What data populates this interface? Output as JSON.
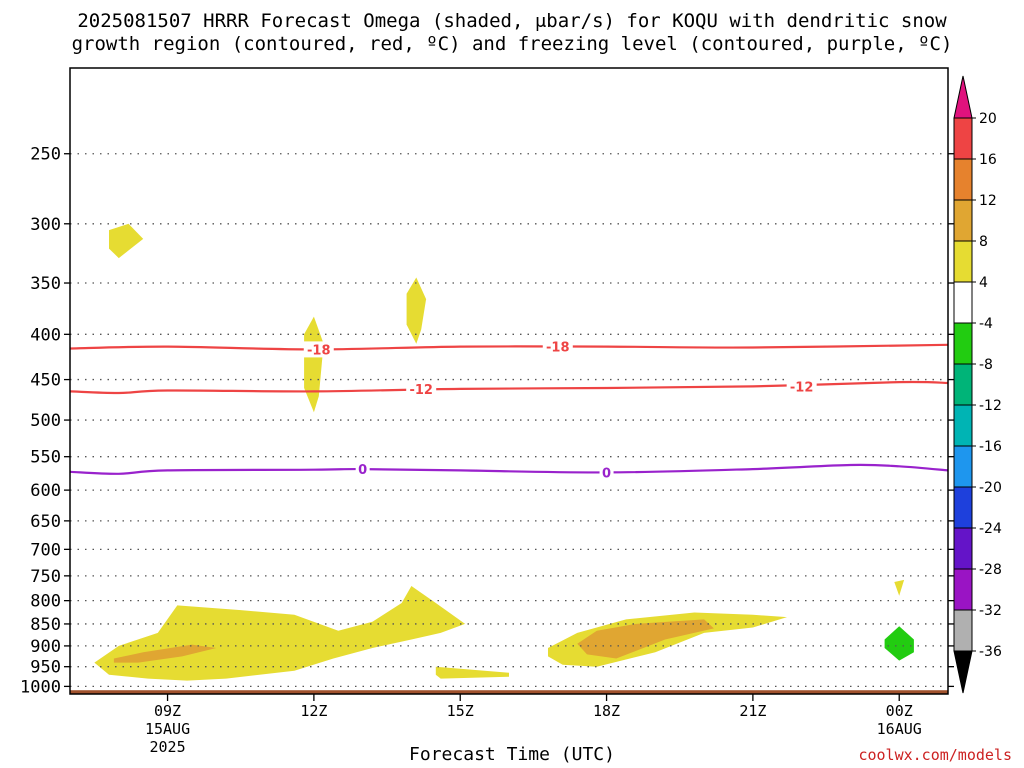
{
  "title_line1": "2025081507 HRRR Forecast Omega (shaded, μbar/s) for KOQU with dendritic snow",
  "title_line2": "growth region (contoured, red, ºC) and freezing level (contoured, purple, ºC)",
  "credit": "coolwx.com/models",
  "chart_data": {
    "type": "contour",
    "xlabel": "Forecast Time (UTC)",
    "ylabel": "",
    "x_range": [
      7,
      25
    ],
    "pressure_range": [
      1020,
      200
    ],
    "y_ticks": [
      250,
      300,
      350,
      400,
      450,
      500,
      550,
      600,
      650,
      700,
      750,
      800,
      850,
      900,
      950,
      1000
    ],
    "x_ticks": [
      {
        "hour": 9,
        "label": "09Z",
        "sub": "15AUG",
        "sub2": "2025"
      },
      {
        "hour": 12,
        "label": "12Z",
        "sub": "",
        "sub2": ""
      },
      {
        "hour": 15,
        "label": "15Z",
        "sub": "",
        "sub2": ""
      },
      {
        "hour": 18,
        "label": "18Z",
        "sub": "",
        "sub2": ""
      },
      {
        "hour": 21,
        "label": "21Z",
        "sub": "",
        "sub2": ""
      },
      {
        "hour": 24,
        "label": "00Z",
        "sub": "16AUG",
        "sub2": ""
      }
    ],
    "grid": true,
    "surface_color": "#a0522d",
    "surface_pressure": 1010,
    "contours": [
      {
        "value": "-18",
        "color": "#ee4444",
        "kind": "dendritic",
        "points": [
          [
            7,
            415
          ],
          [
            9,
            413
          ],
          [
            12,
            416
          ],
          [
            15,
            413
          ],
          [
            18,
            413
          ],
          [
            21,
            414
          ],
          [
            25,
            411
          ]
        ],
        "labels": [
          [
            12.1,
            416
          ],
          [
            17.0,
            413
          ]
        ]
      },
      {
        "value": "-12",
        "color": "#ee4444",
        "kind": "dendritic",
        "points": [
          [
            7,
            464
          ],
          [
            8,
            466
          ],
          [
            9,
            463
          ],
          [
            12,
            464
          ],
          [
            15,
            461
          ],
          [
            18,
            460
          ],
          [
            21,
            458
          ],
          [
            24,
            453
          ],
          [
            25,
            454
          ]
        ],
        "labels": [
          [
            14.2,
            461
          ],
          [
            22.0,
            458
          ]
        ]
      },
      {
        "value": "0",
        "color": "#9922cc",
        "kind": "freezing",
        "points": [
          [
            7,
            572
          ],
          [
            8,
            575
          ],
          [
            9,
            570
          ],
          [
            12,
            569
          ],
          [
            13,
            568
          ],
          [
            15,
            570
          ],
          [
            18,
            573
          ],
          [
            21,
            568
          ],
          [
            23,
            562
          ],
          [
            24,
            564
          ],
          [
            25,
            570
          ]
        ],
        "labels": [
          [
            13.0,
            568
          ],
          [
            18.0,
            573
          ]
        ]
      }
    ],
    "shaded_regions": [
      {
        "omega_bin": "4 to 8",
        "color": "#e6dc32",
        "points": [
          [
            7.5,
            940
          ],
          [
            8.0,
            900
          ],
          [
            8.8,
            870
          ],
          [
            9.2,
            810
          ],
          [
            10.5,
            820
          ],
          [
            11.6,
            830
          ],
          [
            12.5,
            865
          ],
          [
            13.2,
            845
          ],
          [
            13.8,
            805
          ],
          [
            14.0,
            770
          ],
          [
            14.5,
            805
          ],
          [
            15.1,
            850
          ],
          [
            14.6,
            870
          ],
          [
            14.0,
            885
          ],
          [
            13.2,
            905
          ],
          [
            12.4,
            930
          ],
          [
            11.6,
            960
          ],
          [
            10.2,
            980
          ],
          [
            9.4,
            985
          ],
          [
            8.6,
            980
          ],
          [
            7.8,
            970
          ]
        ]
      },
      {
        "omega_bin": "4 to 8",
        "color": "#e6dc32",
        "points": [
          [
            14.5,
            950
          ],
          [
            15.5,
            960
          ],
          [
            16.0,
            965
          ],
          [
            16.0,
            975
          ],
          [
            14.6,
            980
          ],
          [
            14.5,
            970
          ]
        ]
      },
      {
        "omega_bin": "4 to 8",
        "color": "#e6dc32",
        "points": [
          [
            16.8,
            905
          ],
          [
            17.4,
            870
          ],
          [
            18.4,
            840
          ],
          [
            19.8,
            825
          ],
          [
            21.0,
            830
          ],
          [
            21.7,
            835
          ],
          [
            21.0,
            858
          ],
          [
            20.0,
            870
          ],
          [
            19.0,
            915
          ],
          [
            17.8,
            950
          ],
          [
            17.1,
            945
          ],
          [
            16.8,
            925
          ]
        ]
      },
      {
        "omega_bin": "8 to 12",
        "color": "#e0a632",
        "points": [
          [
            7.9,
            930
          ],
          [
            8.5,
            915
          ],
          [
            9.5,
            897
          ],
          [
            10.0,
            905
          ],
          [
            9.3,
            925
          ],
          [
            8.4,
            940
          ],
          [
            7.9,
            940
          ]
        ]
      },
      {
        "omega_bin": "8 to 12",
        "color": "#e0a632",
        "points": [
          [
            17.4,
            895
          ],
          [
            17.8,
            865
          ],
          [
            18.6,
            850
          ],
          [
            20.0,
            840
          ],
          [
            20.2,
            860
          ],
          [
            19.2,
            885
          ],
          [
            18.2,
            930
          ],
          [
            17.6,
            920
          ]
        ]
      },
      {
        "omega_bin": "4 to 8",
        "color": "#e6dc32",
        "points": [
          [
            7.8,
            305
          ],
          [
            8.2,
            300
          ],
          [
            8.5,
            312
          ],
          [
            8.0,
            328
          ],
          [
            7.8,
            320
          ]
        ]
      },
      {
        "omega_bin": "4 to 8",
        "color": "#e6dc32",
        "points": [
          [
            11.8,
            400
          ],
          [
            12.0,
            382
          ],
          [
            12.2,
            410
          ],
          [
            12.1,
            470
          ],
          [
            12.0,
            490
          ],
          [
            11.8,
            460
          ]
        ]
      },
      {
        "omega_bin": "4 to 8",
        "color": "#e6dc32",
        "points": [
          [
            13.9,
            360
          ],
          [
            14.1,
            345
          ],
          [
            14.3,
            365
          ],
          [
            14.2,
            395
          ],
          [
            14.1,
            410
          ],
          [
            13.9,
            390
          ]
        ]
      },
      {
        "omega_bin": "4 to 8",
        "color": "#e6dc32",
        "points": [
          [
            23.9,
            762
          ],
          [
            24.1,
            758
          ],
          [
            24.0,
            790
          ]
        ]
      },
      {
        "omega_bin": "-4 to -8",
        "color": "#22cc11",
        "points": [
          [
            23.7,
            885
          ],
          [
            24.0,
            855
          ],
          [
            24.3,
            885
          ],
          [
            24.3,
            915
          ],
          [
            24.0,
            935
          ],
          [
            23.7,
            905
          ]
        ]
      }
    ],
    "colorbar": {
      "levels": [
        "20",
        "16",
        "12",
        "8",
        "4",
        "-4",
        "-8",
        "-12",
        "-16",
        "-20",
        "-24",
        "-28",
        "-32",
        "-36"
      ],
      "colors": [
        "#ee4444",
        "#e6822d",
        "#e0a632",
        "#e6dc32",
        "#ffffff",
        "#22cc11",
        "#00b478",
        "#00b4b4",
        "#1e96ee",
        "#1e40dc",
        "#6414c8",
        "#9a14c4",
        "#b0b0b0"
      ],
      "top_color": "#e0127d",
      "bottom_color": "#000000"
    }
  }
}
